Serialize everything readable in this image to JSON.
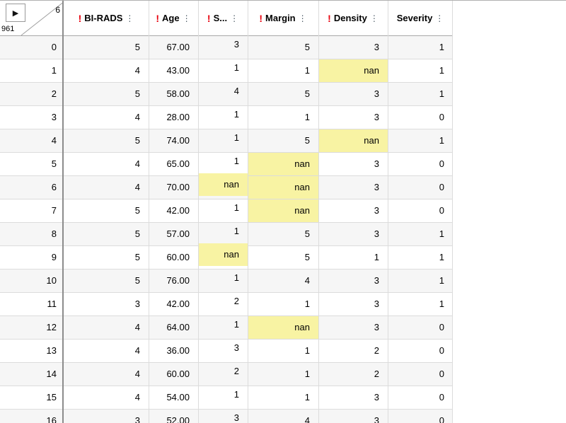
{
  "corner": {
    "menu_icon": "▶",
    "col_count": "6",
    "row_count": "961"
  },
  "icons": {
    "warning": "!",
    "column_menu": "⋮"
  },
  "colors": {
    "missing_bg": "#f8f3a3",
    "warning": "#e8000d"
  },
  "columns": [
    {
      "id": "bi-rads",
      "label": "BI-RADS",
      "has_missing": true
    },
    {
      "id": "age",
      "label": "Age",
      "has_missing": true
    },
    {
      "id": "s",
      "label": "S...",
      "has_missing": true
    },
    {
      "id": "margin",
      "label": "Margin",
      "has_missing": true
    },
    {
      "id": "density",
      "label": "Density",
      "has_missing": true
    },
    {
      "id": "severity",
      "label": "Severity",
      "has_missing": false
    }
  ],
  "rows": [
    {
      "index": "0",
      "cells": [
        "5",
        "67.00",
        "3",
        "5",
        "3",
        "1"
      ]
    },
    {
      "index": "1",
      "cells": [
        "4",
        "43.00",
        "1",
        "1",
        "nan",
        "1"
      ]
    },
    {
      "index": "2",
      "cells": [
        "5",
        "58.00",
        "4",
        "5",
        "3",
        "1"
      ]
    },
    {
      "index": "3",
      "cells": [
        "4",
        "28.00",
        "1",
        "1",
        "3",
        "0"
      ]
    },
    {
      "index": "4",
      "cells": [
        "5",
        "74.00",
        "1",
        "5",
        "nan",
        "1"
      ]
    },
    {
      "index": "5",
      "cells": [
        "4",
        "65.00",
        "1",
        "nan",
        "3",
        "0"
      ]
    },
    {
      "index": "6",
      "cells": [
        "4",
        "70.00",
        "nan",
        "nan",
        "3",
        "0"
      ]
    },
    {
      "index": "7",
      "cells": [
        "5",
        "42.00",
        "1",
        "nan",
        "3",
        "0"
      ]
    },
    {
      "index": "8",
      "cells": [
        "5",
        "57.00",
        "1",
        "5",
        "3",
        "1"
      ]
    },
    {
      "index": "9",
      "cells": [
        "5",
        "60.00",
        "nan",
        "5",
        "1",
        "1"
      ]
    },
    {
      "index": "10",
      "cells": [
        "5",
        "76.00",
        "1",
        "4",
        "3",
        "1"
      ]
    },
    {
      "index": "11",
      "cells": [
        "3",
        "42.00",
        "2",
        "1",
        "3",
        "1"
      ]
    },
    {
      "index": "12",
      "cells": [
        "4",
        "64.00",
        "1",
        "nan",
        "3",
        "0"
      ]
    },
    {
      "index": "13",
      "cells": [
        "4",
        "36.00",
        "3",
        "1",
        "2",
        "0"
      ]
    },
    {
      "index": "14",
      "cells": [
        "4",
        "60.00",
        "2",
        "1",
        "2",
        "0"
      ]
    },
    {
      "index": "15",
      "cells": [
        "4",
        "54.00",
        "1",
        "1",
        "3",
        "0"
      ]
    },
    {
      "index": "16",
      "cells": [
        "3",
        "52.00",
        "3",
        "4",
        "3",
        "0"
      ]
    }
  ]
}
